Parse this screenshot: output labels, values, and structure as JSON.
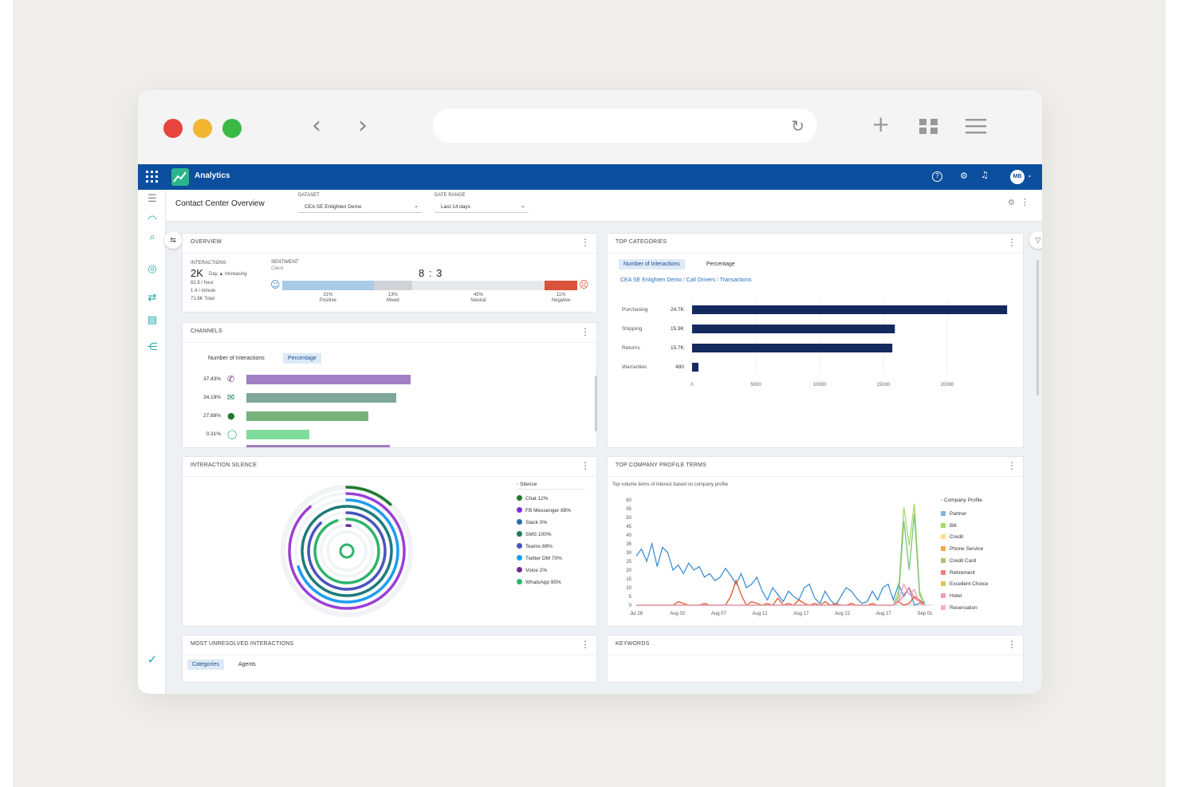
{
  "app": {
    "title": "Analytics",
    "user_initials": "MB"
  },
  "page": {
    "title": "Contact Center Overview",
    "dataset_label": "DATASET",
    "dataset_value": "CEA SE Enlighten Demo",
    "date_range_label": "DATE RANGE",
    "date_range_value": "Last 14 days"
  },
  "overview": {
    "title": "OVERVIEW",
    "interactions_label": "INTERACTIONS",
    "interactions_value": "2K",
    "trend": "Day ▲ Increasing",
    "per_hour": "82.8 / hour",
    "per_minute": "1.4 / minute",
    "total": "71.6K Total",
    "sentiment_label": "SENTIMENT",
    "sentiment_sub": "Client",
    "ratio": "8 : 3",
    "segments": [
      {
        "pct": "31%",
        "label": "Positive",
        "value": 31,
        "color": "#a8cce8"
      },
      {
        "pct": "13%",
        "label": "Mixed",
        "value": 13,
        "color": "#cfd3d7"
      },
      {
        "pct": "45%",
        "label": "Neutral",
        "value": 45,
        "color": "#e7e9eb"
      },
      {
        "pct": "11%",
        "label": "Negative",
        "value": 11,
        "color": "#d9543a"
      }
    ]
  },
  "channels": {
    "title": "CHANNELS",
    "tabs": [
      "Number of Interactions",
      "Percentage"
    ],
    "active_tab": 1,
    "rows": [
      {
        "pct": "37.43%",
        "value": 37.43,
        "icon": "phone-icon",
        "glyph": "✆",
        "icon_color": "#6a2c91",
        "color": "#a07fc2"
      },
      {
        "pct": "34.19%",
        "value": 34.19,
        "icon": "email-icon",
        "glyph": "✉",
        "icon_color": "#1e7a5a",
        "color": "#7fa89a"
      },
      {
        "pct": "27.88%",
        "value": 27.88,
        "icon": "chat-icon",
        "glyph": "●",
        "icon_color": "#1f7a2a",
        "color": "#77b27b"
      },
      {
        "pct": "0.31%",
        "value": 0.31,
        "icon": "whatsapp-icon",
        "glyph": "◯",
        "icon_color": "#2fb36a",
        "color": "#7fdc9b"
      }
    ]
  },
  "top_categories": {
    "title": "TOP CATEGORIES",
    "tabs": [
      "Number of Interactions",
      "Percentage"
    ],
    "active_tab": 0,
    "breadcrumb": [
      "CEA SE Enlighten Demo",
      "Call Drivers",
      "Transactions"
    ],
    "chart_data": {
      "type": "bar",
      "orientation": "horizontal",
      "categories": [
        "Purchasing",
        "Shipping",
        "Returns",
        "Warranties"
      ],
      "value_labels": [
        "24.7K",
        "15.9K",
        "15.7K",
        "480"
      ],
      "values": [
        24700,
        15900,
        15700,
        480
      ],
      "xticks": [
        "0",
        "5000",
        "10000",
        "15000",
        "20000"
      ],
      "xlim": [
        0,
        25000
      ],
      "color": "#14295e"
    }
  },
  "silence": {
    "title": "INTERACTION SILENCE",
    "legend_title": "Silence",
    "legend": [
      {
        "label": "Chat 12%",
        "icon": "chat-icon",
        "color": "#1f7a2a"
      },
      {
        "label": "FB Messenger 89%",
        "icon": "messenger-icon",
        "color": "#7b2fd1"
      },
      {
        "label": "Slack 0%",
        "icon": "slack-icon",
        "color": "#2b6cb0"
      },
      {
        "label": "SMS 100%",
        "icon": "sms-icon",
        "color": "#1e7a5a"
      },
      {
        "label": "Teams 88%",
        "icon": "teams-icon",
        "color": "#4b53bc"
      },
      {
        "label": "Twitter DM 70%",
        "icon": "twitter-icon",
        "color": "#1d9bf0"
      },
      {
        "label": "Voice 2%",
        "icon": "phone-icon",
        "color": "#6a2c91"
      },
      {
        "label": "WhatsApp 95%",
        "icon": "whatsapp-icon",
        "color": "#2fb36a"
      }
    ],
    "rings": [
      {
        "value": 12,
        "color": "#1f7a2a"
      },
      {
        "value": 89,
        "color": "#9b3fd6"
      },
      {
        "value": 0,
        "color": "#2b6cb0"
      },
      {
        "value": 100,
        "color": "#1e7a7a"
      },
      {
        "value": 88,
        "color": "#4b53bc"
      },
      {
        "value": 70,
        "color": "#1d9bf0"
      },
      {
        "value": 2,
        "color": "#6a2c91"
      },
      {
        "value": 95,
        "color": "#2fb36a"
      }
    ]
  },
  "profile_terms": {
    "title": "TOP COMPANY PROFILE TERMS",
    "subtitle": "Top volume items of interest based on company profile",
    "legend_title": "Company Profile",
    "legend": [
      {
        "label": "Partner",
        "color": "#7fb3e6"
      },
      {
        "label": "Bill",
        "color": "#a6d96a"
      },
      {
        "label": "Credit",
        "color": "#ffe08a"
      },
      {
        "label": "Phone Service",
        "color": "#f4a64a"
      },
      {
        "label": "Credit Card",
        "color": "#a3c977"
      },
      {
        "label": "Retirement",
        "color": "#f08080"
      },
      {
        "label": "Excellent Choice",
        "color": "#e0c25b"
      },
      {
        "label": "Hotel",
        "color": "#f49ac1"
      },
      {
        "label": "Reservation",
        "color": "#f7b2b7"
      }
    ],
    "chart_data": {
      "type": "line",
      "yticks": [
        "60",
        "55",
        "50",
        "45",
        "40",
        "35",
        "30",
        "25",
        "20",
        "15",
        "10",
        "5",
        "0"
      ],
      "ylim": [
        0,
        60
      ],
      "xticks": [
        "Jul 28",
        "Aug 02",
        "Aug 07",
        "Aug 12",
        "Aug 17",
        "Aug 22",
        "Aug 27",
        "Sep 01"
      ],
      "series": [
        {
          "color": "#3f8fd6",
          "values": [
            28,
            32,
            25,
            35,
            22,
            33,
            30,
            20,
            23,
            18,
            24,
            20,
            22,
            16,
            18,
            14,
            16,
            21,
            17,
            12,
            18,
            10,
            12,
            16,
            8,
            3,
            10,
            6,
            2,
            8,
            5,
            3,
            10,
            12,
            4,
            1,
            8,
            3,
            0,
            5,
            10,
            8,
            4,
            1,
            2,
            8,
            3,
            10,
            12,
            3,
            12,
            5,
            10,
            0,
            1,
            2
          ]
        },
        {
          "color": "#e2542e",
          "values": [
            0,
            0,
            0,
            0,
            0,
            0,
            0,
            0,
            2,
            1,
            0,
            0,
            0,
            1,
            0,
            0,
            0,
            0,
            5,
            14,
            6,
            0,
            2,
            1,
            0,
            1,
            0,
            4,
            0,
            1,
            0,
            3,
            1,
            0,
            1,
            0,
            2,
            0,
            1,
            0,
            0,
            1,
            0,
            0,
            0,
            1,
            0,
            0,
            0,
            0,
            2,
            0,
            1,
            5,
            3,
            0
          ]
        },
        {
          "color": "#a6d96a",
          "values": [
            0,
            0,
            0,
            0,
            0,
            0,
            0,
            0,
            0,
            0,
            0,
            0,
            0,
            0,
            0,
            0,
            0,
            0,
            0,
            0,
            0,
            0,
            0,
            0,
            0,
            0,
            0,
            0,
            0,
            0,
            0,
            0,
            0,
            0,
            0,
            0,
            0,
            0,
            0,
            0,
            0,
            0,
            0,
            0,
            0,
            0,
            0,
            0,
            0,
            0,
            8,
            56,
            34,
            58,
            8,
            0
          ]
        },
        {
          "color": "#7cc47a",
          "values": [
            0,
            0,
            0,
            0,
            0,
            0,
            0,
            0,
            0,
            0,
            0,
            0,
            0,
            0,
            0,
            0,
            0,
            0,
            0,
            0,
            0,
            0,
            0,
            0,
            0,
            0,
            0,
            0,
            0,
            0,
            0,
            0,
            0,
            0,
            0,
            0,
            0,
            0,
            0,
            0,
            0,
            0,
            0,
            0,
            0,
            0,
            0,
            0,
            0,
            0,
            5,
            48,
            20,
            52,
            6,
            0
          ]
        },
        {
          "color": "#f08080",
          "values": [
            0,
            0,
            0,
            0,
            0,
            0,
            0,
            0,
            0,
            0,
            0,
            0,
            0,
            0,
            0,
            0,
            0,
            0,
            0,
            0,
            0,
            0,
            0,
            0,
            0,
            0,
            0,
            0,
            0,
            0,
            0,
            0,
            0,
            0,
            0,
            0,
            0,
            0,
            0,
            0,
            0,
            0,
            0,
            0,
            0,
            0,
            0,
            0,
            0,
            0,
            2,
            6,
            10,
            4,
            2,
            0
          ]
        },
        {
          "color": "#f49ac1",
          "values": [
            0,
            0,
            0,
            0,
            0,
            0,
            0,
            0,
            0,
            0,
            0,
            0,
            0,
            0,
            0,
            0,
            0,
            0,
            0,
            0,
            0,
            0,
            0,
            0,
            0,
            0,
            0,
            0,
            0,
            0,
            0,
            0,
            0,
            0,
            0,
            0,
            0,
            0,
            0,
            0,
            0,
            0,
            0,
            0,
            0,
            0,
            0,
            0,
            0,
            0,
            3,
            12,
            6,
            9,
            1,
            0
          ]
        }
      ]
    }
  },
  "unresolved": {
    "title": "MOST UNRESOLVED INTERACTIONS",
    "tabs": [
      "Categories",
      "Agents"
    ],
    "active_tab": 0
  },
  "keywords": {
    "title": "KEYWORDS"
  }
}
